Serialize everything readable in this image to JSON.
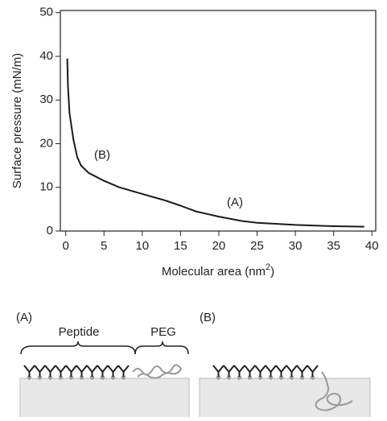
{
  "chart_data": {
    "type": "line",
    "x_label": {
      "text": "Molecular area (nm",
      "superscript": "2",
      "suffix": ")"
    },
    "y_label": "Surface pressure (mN/m)",
    "series": [
      {
        "color": "#1a1a1a",
        "x": [
          0.2,
          0.3,
          0.5,
          1,
          1.5,
          2,
          3,
          5,
          7,
          10,
          13,
          15,
          17,
          20,
          23,
          25,
          30,
          35,
          39
        ],
        "values": [
          39.5,
          33,
          27,
          21,
          17,
          15,
          13.3,
          11.5,
          10,
          8.5,
          7,
          5.8,
          4.5,
          3.3,
          2.3,
          1.9,
          1.4,
          1.1,
          1.0
        ]
      }
    ],
    "annotations": [
      "(B)",
      "(A)"
    ],
    "xlim": [
      -0.7,
      40.5
    ],
    "ylim": [
      0,
      50.5
    ],
    "xticks": [
      0,
      5,
      10,
      15,
      20,
      25,
      30,
      35,
      40
    ],
    "yticks": [
      0,
      10,
      20,
      30,
      40,
      50
    ]
  },
  "diagram": {
    "panel_a": {
      "label": "(A)",
      "peptide": "Peptide",
      "peg": "PEG"
    },
    "panel_b": {
      "label": "(B)"
    }
  }
}
